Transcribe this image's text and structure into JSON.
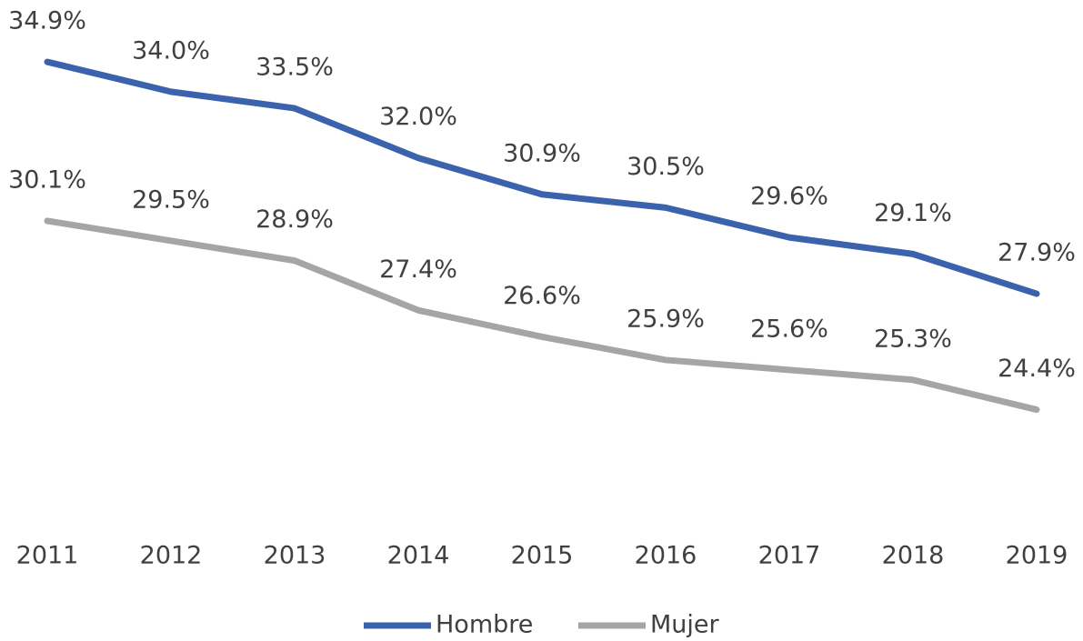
{
  "chart_data": {
    "type": "line",
    "categories": [
      "2011",
      "2012",
      "2013",
      "2014",
      "2015",
      "2016",
      "2017",
      "2018",
      "2019"
    ],
    "series": [
      {
        "name": "Hombre",
        "color": "#3b62ad",
        "values": [
          34.9,
          34.0,
          33.5,
          32.0,
          30.9,
          30.5,
          29.6,
          29.1,
          27.9
        ],
        "value_labels": [
          "34.9%",
          "34.0%",
          "33.5%",
          "32.0%",
          "30.9%",
          "30.5%",
          "29.6%",
          "29.1%",
          "27.9%"
        ]
      },
      {
        "name": "Mujer",
        "color": "#a5a5a8",
        "values": [
          30.1,
          29.5,
          28.9,
          27.4,
          26.6,
          25.9,
          25.6,
          25.3,
          24.4
        ],
        "value_labels": [
          "30.1%",
          "29.5%",
          "28.9%",
          "27.4%",
          "26.6%",
          "25.9%",
          "25.6%",
          "25.3%",
          "24.4%"
        ]
      }
    ],
    "ylim": [
      22,
      36
    ],
    "legend": "bottom"
  }
}
